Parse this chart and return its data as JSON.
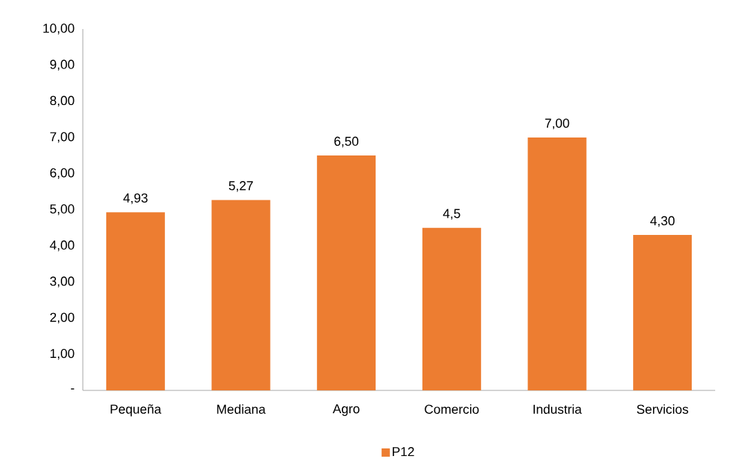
{
  "chart_data": {
    "type": "bar",
    "categories": [
      "Pequeña",
      "Mediana",
      "Agro",
      "Comercio",
      "Industria",
      "Servicios"
    ],
    "series": [
      {
        "name": "P12",
        "color": "#ed7d31",
        "values": [
          4.93,
          5.27,
          6.5,
          4.5,
          7.0,
          4.3
        ],
        "value_labels": [
          "4,93",
          "5,27",
          "6,50",
          "4,5",
          "7,00",
          "4,30"
        ]
      }
    ],
    "ylim": [
      0,
      10
    ],
    "yticks": [
      {
        "value": 0,
        "label": "-"
      },
      {
        "value": 1,
        "label": "1,00"
      },
      {
        "value": 2,
        "label": "2,00"
      },
      {
        "value": 3,
        "label": "3,00"
      },
      {
        "value": 4,
        "label": "4,00"
      },
      {
        "value": 5,
        "label": "5,00"
      },
      {
        "value": 6,
        "label": "6,00"
      },
      {
        "value": 7,
        "label": "7,00"
      },
      {
        "value": 8,
        "label": "8,00"
      },
      {
        "value": 9,
        "label": "9,00"
      },
      {
        "value": 10,
        "label": "10,00"
      }
    ],
    "grid": false,
    "legend": "bottom"
  }
}
